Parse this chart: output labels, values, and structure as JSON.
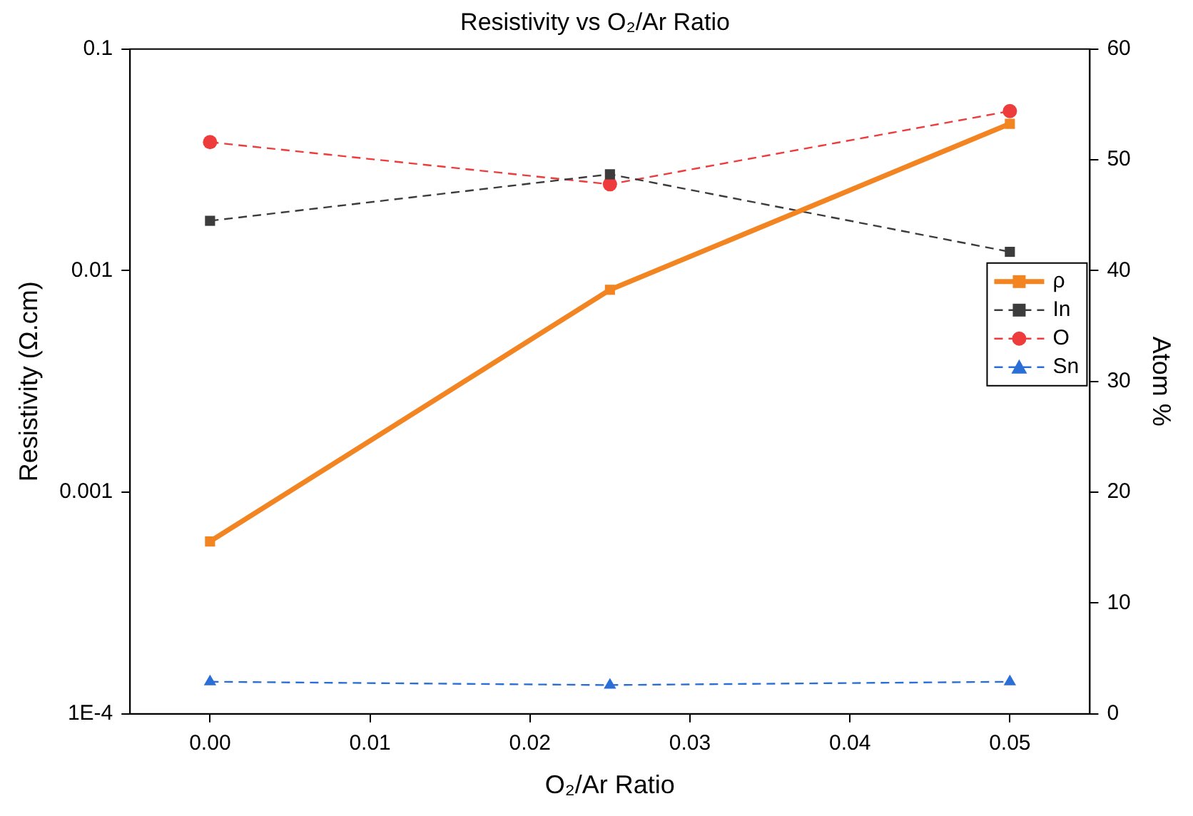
{
  "chart_data": {
    "type": "line",
    "title": "Resistivity vs O₂/Ar Ratio",
    "xlabel": "O₂/Ar Ratio",
    "ylabel": "Resistivity (Ω.cm)",
    "y2label": "Atom %",
    "x": [
      0,
      0.025,
      0.05
    ],
    "xlim": [
      -0.005,
      0.055
    ],
    "xticks": [
      {
        "value": 0,
        "label": "0.00"
      },
      {
        "value": 0.01,
        "label": "0.01"
      },
      {
        "value": 0.02,
        "label": "0.02"
      },
      {
        "value": 0.03,
        "label": "0.03"
      },
      {
        "value": 0.04,
        "label": "0.04"
      },
      {
        "value": 0.05,
        "label": "0.05"
      }
    ],
    "log": "y",
    "ylim": [
      0.0001,
      0.1
    ],
    "yticks": [
      {
        "value": 0.0001,
        "label": "1E-4"
      },
      {
        "value": 0.001,
        "label": "0.001"
      },
      {
        "value": 0.01,
        "label": "0.01"
      },
      {
        "value": 0.1,
        "label": "0.1"
      }
    ],
    "y2lim": [
      0,
      60
    ],
    "y2ticks": [
      0,
      10,
      20,
      30,
      40,
      50,
      60
    ],
    "grid": false,
    "legend": "right",
    "series": [
      {
        "name": "ρ",
        "color": "#f28522",
        "values": [
          0.0006,
          0.0082,
          0.046
        ],
        "marker": "square",
        "line_style": "solid"
      },
      {
        "name": "In",
        "color": "#3c3c3c",
        "values": [
          44.5,
          48.7,
          41.7
        ],
        "axis": "y2",
        "marker": "square",
        "line_style": "dashed"
      },
      {
        "name": "O",
        "color": "#ee3b3b",
        "values": [
          51.6,
          47.8,
          54.4
        ],
        "axis": "y2",
        "marker": "circle",
        "line_style": "dashed"
      },
      {
        "name": "Sn",
        "color": "#2a6fd6",
        "values": [
          2.9,
          2.6,
          2.9
        ],
        "axis": "y2",
        "marker": "triangle",
        "line_style": "dashed"
      }
    ]
  }
}
